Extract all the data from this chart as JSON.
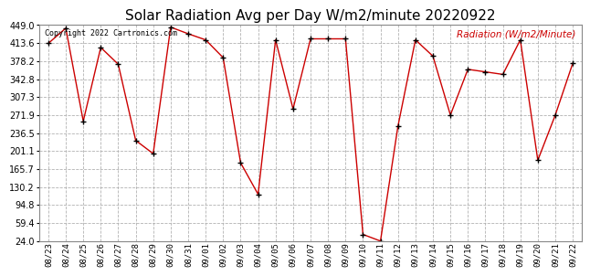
{
  "title": "Solar Radiation Avg per Day W/m2/minute 20220922",
  "copyright_text": "Copyright 2022 Cartronics.com",
  "legend_label": "Radiation (W/m2/Minute)",
  "dates": [
    "08/23",
    "08/24",
    "08/25",
    "08/26",
    "08/27",
    "08/28",
    "08/29",
    "08/30",
    "08/31",
    "09/01",
    "09/02",
    "09/03",
    "09/04",
    "09/05",
    "09/06",
    "09/07",
    "09/08",
    "09/09",
    "09/10",
    "09/11",
    "09/12",
    "09/13",
    "09/14",
    "09/15",
    "09/16",
    "09/17",
    "09/18",
    "09/19",
    "09/20",
    "09/21",
    "09/22"
  ],
  "values": [
    413.0,
    443.0,
    260.0,
    405.0,
    372.0,
    222.0,
    196.0,
    445.0,
    432.0,
    420.0,
    385.0,
    178.0,
    116.0,
    420.0,
    284.0,
    422.0,
    422.0,
    422.0,
    37.0,
    24.0,
    250.0,
    420.0,
    388.0,
    272.0,
    362.0,
    357.0,
    352.0,
    420.0,
    183.0,
    272.0,
    374.0
  ],
  "line_color": "#cc0000",
  "marker_color": "#000000",
  "bg_color": "#ffffff",
  "plot_bg_color": "#ffffff",
  "grid_color": "#aaaaaa",
  "title_fontsize": 11,
  "ylabel_color": "#cc0000",
  "copyright_color": "#000000",
  "ymin": 24.0,
  "ymax": 449.0,
  "yticks": [
    24.0,
    59.4,
    94.8,
    130.2,
    165.7,
    201.1,
    236.5,
    271.9,
    307.3,
    342.8,
    378.2,
    413.6,
    449.0
  ]
}
